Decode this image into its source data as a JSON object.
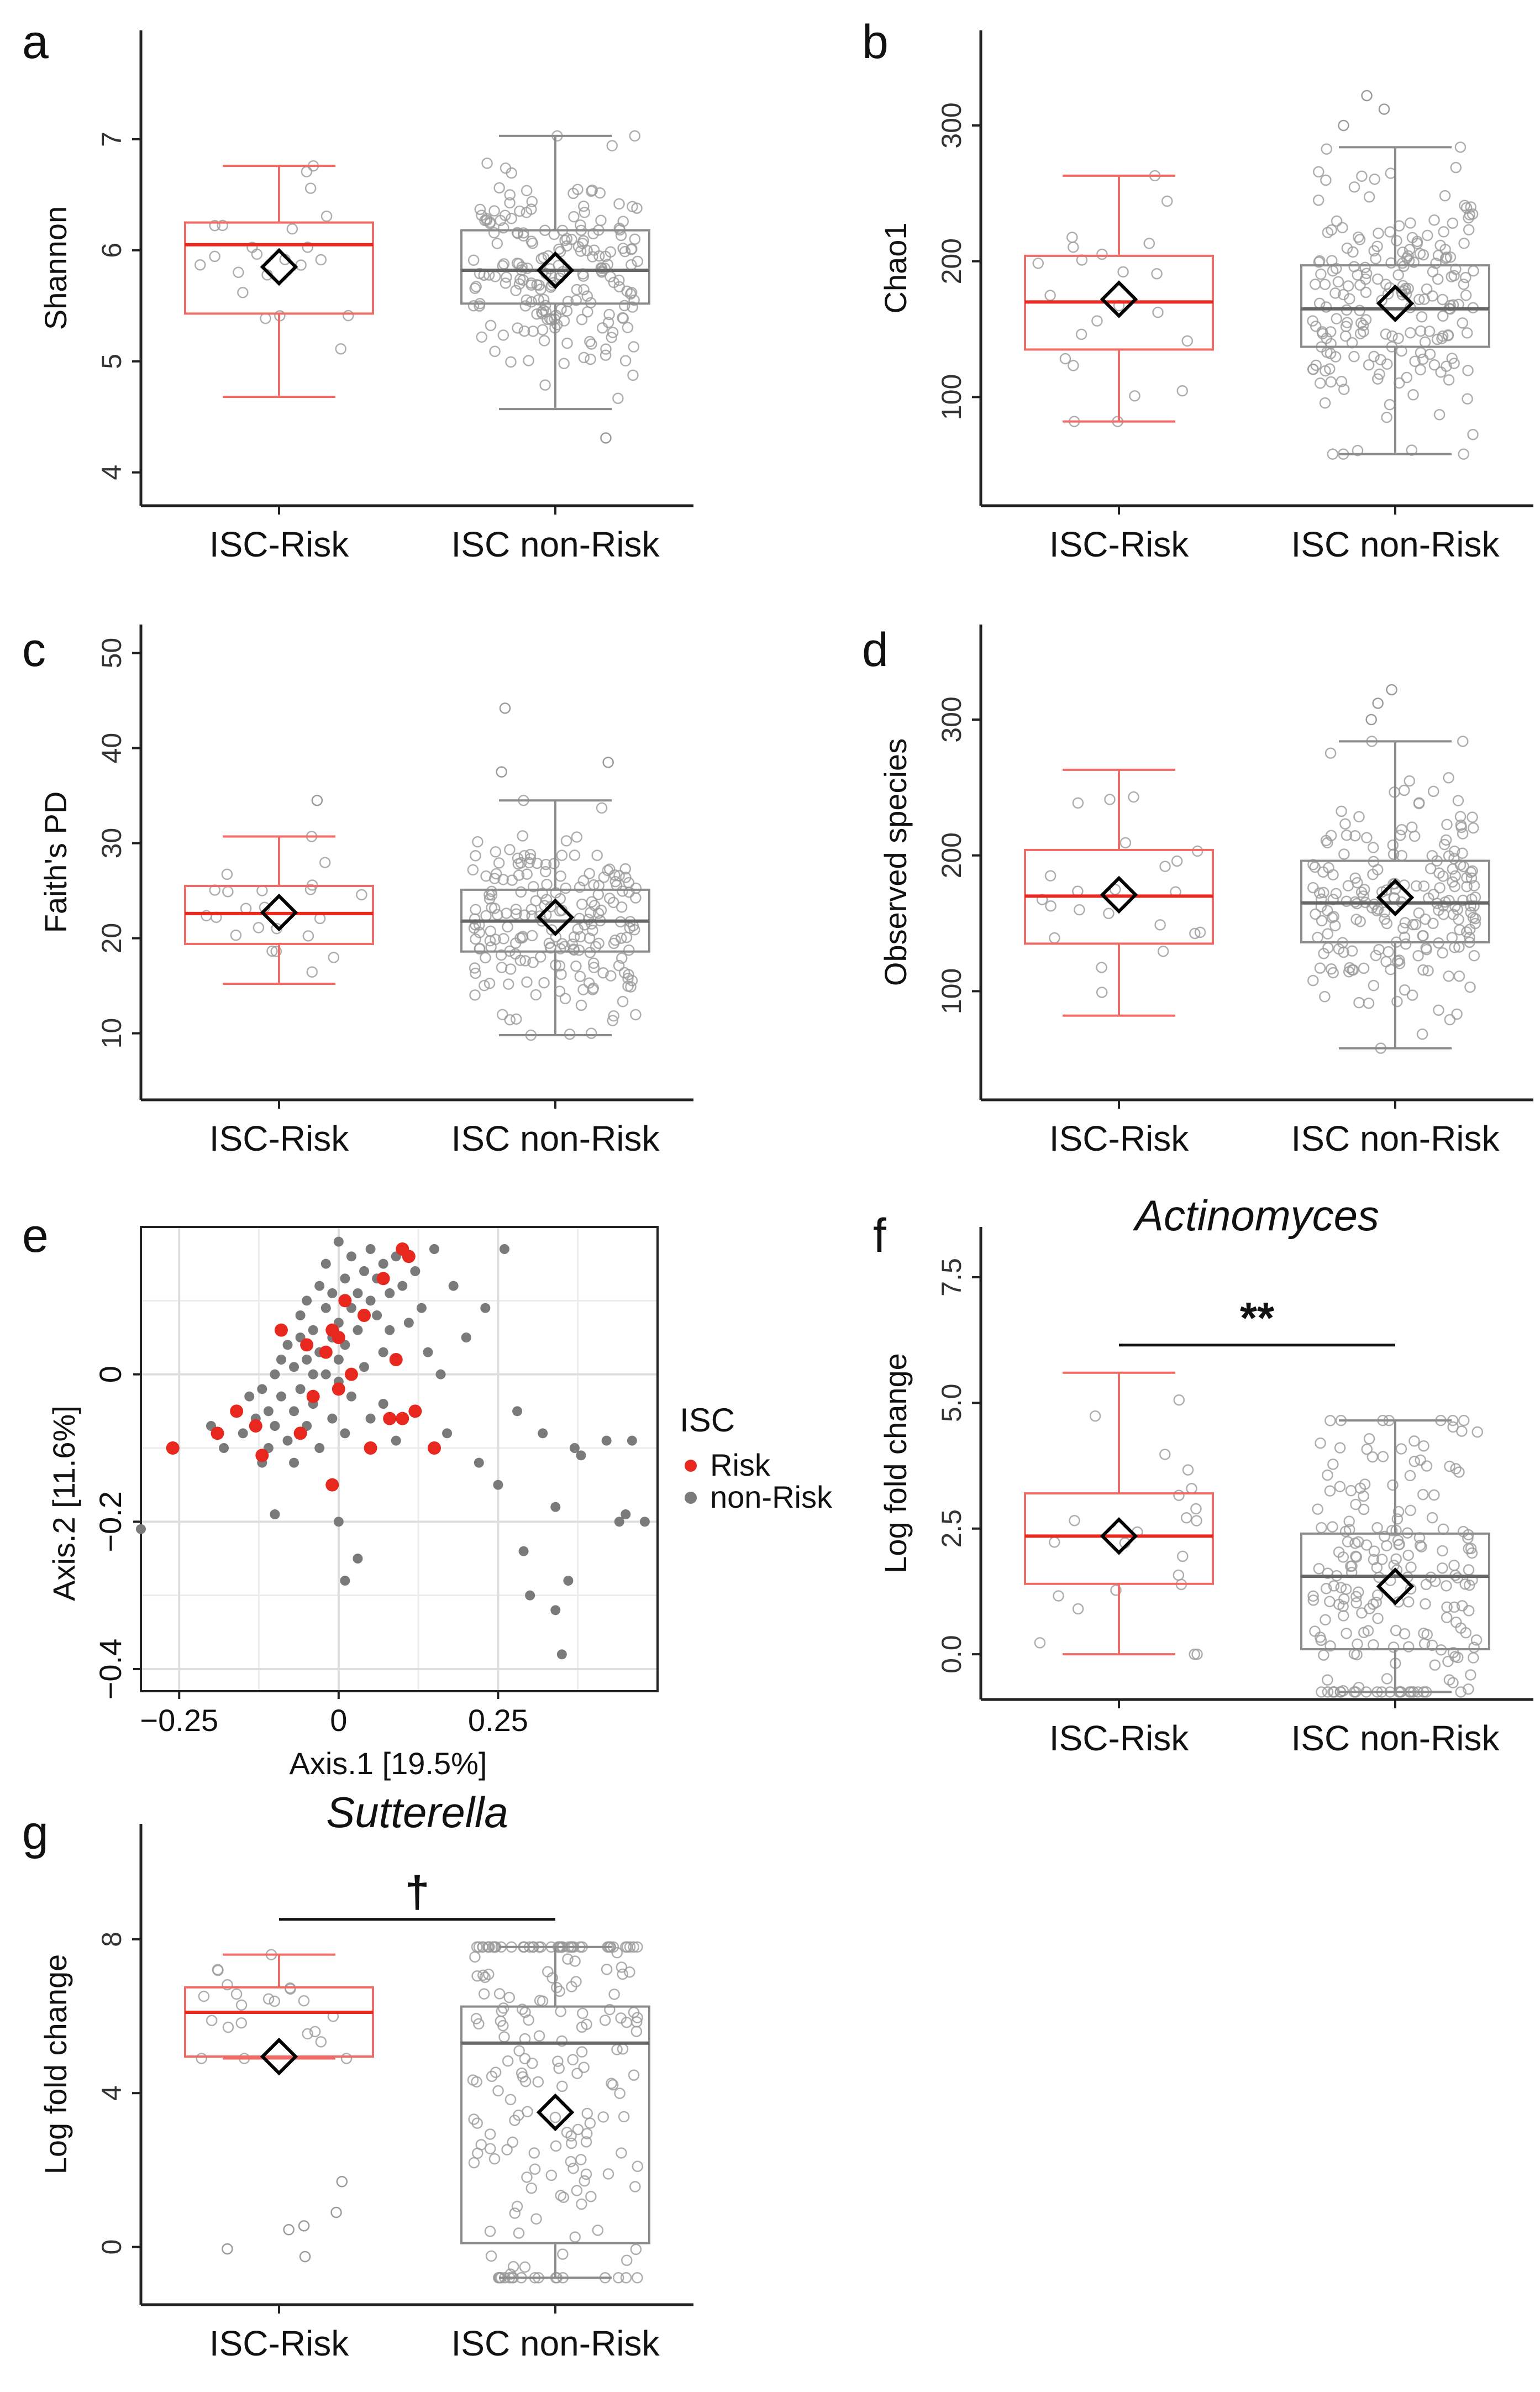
{
  "figure": {
    "colors": {
      "risk": "#e8281e",
      "risk_box": "#f06a66",
      "nonrisk": "#7a7a7a",
      "nonrisk_box": "#8c8c8c",
      "axis": "#222222",
      "grid": "#dedede",
      "diamond": "#000000"
    }
  },
  "chart_data": [
    {
      "id": "a",
      "panel_label": "a",
      "type": "box",
      "title": "",
      "ylabel": "Shannon",
      "xlabel": "",
      "categories": [
        "ISC-Risk",
        "ISC non-Risk"
      ],
      "ylim": [
        3.7,
        7.98
      ],
      "yticks": [
        4,
        5,
        6,
        7
      ],
      "ytick_labels": [
        "4",
        "5",
        "6",
        "7"
      ],
      "boxes": [
        {
          "name": "ISC-Risk",
          "whisker_low": 4.68,
          "q1": 5.43,
          "median": 6.05,
          "q3": 6.25,
          "whisker_high": 6.76,
          "mean": 5.85,
          "n": 22,
          "outliers": []
        },
        {
          "name": "ISC non-Risk",
          "whisker_low": 4.57,
          "q1": 5.52,
          "median": 5.82,
          "q3": 6.18,
          "whisker_high": 7.03,
          "mean": 5.82,
          "n": 200,
          "outliers": [
            4.31
          ]
        }
      ],
      "annotation": null
    },
    {
      "id": "b",
      "panel_label": "b",
      "type": "box",
      "title": "",
      "ylabel": "Chao1",
      "xlabel": "",
      "categories": [
        "ISC-Risk",
        "ISC non-Risk"
      ],
      "ylim": [
        20,
        370
      ],
      "yticks": [
        100,
        200,
        300
      ],
      "ytick_labels": [
        "100",
        "200",
        "300"
      ],
      "boxes": [
        {
          "name": "ISC-Risk",
          "whisker_low": 82,
          "q1": 135,
          "median": 170,
          "q3": 204,
          "whisker_high": 263,
          "mean": 172,
          "n": 22,
          "outliers": []
        },
        {
          "name": "ISC non-Risk",
          "whisker_low": 58,
          "q1": 137,
          "median": 165,
          "q3": 197,
          "whisker_high": 284,
          "mean": 169,
          "n": 200,
          "outliers": [
            300,
            312,
            322
          ]
        }
      ],
      "annotation": null
    },
    {
      "id": "c",
      "panel_label": "c",
      "type": "box",
      "title": "",
      "ylabel": "Faith's PD",
      "xlabel": "",
      "categories": [
        "ISC-Risk",
        "ISC non-Risk"
      ],
      "ylim": [
        3,
        53
      ],
      "yticks": [
        10,
        20,
        30,
        40,
        50
      ],
      "ytick_labels": [
        "10",
        "20",
        "30",
        "40",
        "50"
      ],
      "boxes": [
        {
          "name": "ISC-Risk",
          "whisker_low": 15.2,
          "q1": 19.4,
          "median": 22.6,
          "q3": 25.5,
          "whisker_high": 30.7,
          "mean": 22.7,
          "n": 22,
          "outliers": [
            34.5
          ]
        },
        {
          "name": "ISC non-Risk",
          "whisker_low": 9.8,
          "q1": 18.6,
          "median": 21.8,
          "q3": 25.1,
          "whisker_high": 34.5,
          "mean": 22.2,
          "n": 200,
          "outliers": [
            37.5,
            38.5,
            44.2
          ]
        }
      ],
      "annotation": null
    },
    {
      "id": "d",
      "panel_label": "d",
      "type": "box",
      "title": "",
      "ylabel": "Observed species",
      "xlabel": "",
      "categories": [
        "ISC-Risk",
        "ISC non-Risk"
      ],
      "ylim": [
        20,
        370
      ],
      "yticks": [
        100,
        200,
        300
      ],
      "ytick_labels": [
        "100",
        "200",
        "300"
      ],
      "boxes": [
        {
          "name": "ISC-Risk",
          "whisker_low": 82,
          "q1": 135,
          "median": 170,
          "q3": 204,
          "whisker_high": 263,
          "mean": 171,
          "n": 22,
          "outliers": []
        },
        {
          "name": "ISC non-Risk",
          "whisker_low": 58,
          "q1": 136,
          "median": 165,
          "q3": 196,
          "whisker_high": 284,
          "mean": 169,
          "n": 200,
          "outliers": [
            300,
            312,
            322
          ]
        }
      ],
      "annotation": null
    },
    {
      "id": "e",
      "panel_label": "e",
      "type": "scatter",
      "title": "",
      "xlabel": "Axis.1   [19.5%]",
      "ylabel": "Axis.2   [11.6%]",
      "xlim": [
        -0.31,
        0.5
      ],
      "ylim": [
        -0.43,
        0.2
      ],
      "xticks": [
        -0.25,
        0,
        0.25
      ],
      "xtick_labels": [
        "−0.25",
        "0",
        "0.25"
      ],
      "yticks": [
        -0.4,
        -0.2,
        0
      ],
      "ytick_labels": [
        "−0.4",
        "−0.2",
        "0"
      ],
      "legend": {
        "title": "ISC",
        "position": "right",
        "entries": [
          "Risk",
          "non-Risk"
        ]
      },
      "series": [
        {
          "name": "non-Risk",
          "points": [
            [
              -0.31,
              -0.21
            ],
            [
              -0.2,
              -0.07
            ],
            [
              -0.18,
              -0.1
            ],
            [
              -0.16,
              -0.05
            ],
            [
              -0.15,
              -0.08
            ],
            [
              -0.14,
              -0.03
            ],
            [
              -0.13,
              -0.06
            ],
            [
              -0.12,
              -0.12
            ],
            [
              -0.12,
              -0.02
            ],
            [
              -0.11,
              -0.05
            ],
            [
              -0.11,
              -0.1
            ],
            [
              -0.1,
              0.0
            ],
            [
              -0.1,
              -0.07
            ],
            [
              -0.1,
              -0.19
            ],
            [
              -0.09,
              -0.03
            ],
            [
              -0.09,
              0.02
            ],
            [
              -0.08,
              -0.09
            ],
            [
              -0.08,
              0.04
            ],
            [
              -0.07,
              -0.05
            ],
            [
              -0.07,
              0.01
            ],
            [
              -0.07,
              -0.12
            ],
            [
              -0.06,
              0.05
            ],
            [
              -0.06,
              -0.02
            ],
            [
              -0.06,
              0.08
            ],
            [
              -0.05,
              0.02
            ],
            [
              -0.05,
              -0.07
            ],
            [
              -0.05,
              0.1
            ],
            [
              -0.04,
              0.0
            ],
            [
              -0.04,
              0.06
            ],
            [
              -0.04,
              -0.04
            ],
            [
              -0.03,
              0.12
            ],
            [
              -0.03,
              0.03
            ],
            [
              -0.03,
              -0.1
            ],
            [
              -0.02,
              0.09
            ],
            [
              -0.02,
              0.0
            ],
            [
              -0.02,
              0.15
            ],
            [
              -0.01,
              0.05
            ],
            [
              -0.01,
              -0.06
            ],
            [
              -0.01,
              0.11
            ],
            [
              0.0,
              0.07
            ],
            [
              0.0,
              0.02
            ],
            [
              0.0,
              -0.01
            ],
            [
              0.0,
              0.18
            ],
            [
              0.0,
              -0.2
            ],
            [
              0.01,
              0.13
            ],
            [
              0.01,
              0.04
            ],
            [
              0.01,
              -0.08
            ],
            [
              0.01,
              -0.28
            ],
            [
              0.02,
              0.09
            ],
            [
              0.02,
              0.16
            ],
            [
              0.02,
              -0.03
            ],
            [
              0.03,
              0.11
            ],
            [
              0.03,
              0.06
            ],
            [
              0.03,
              -0.25
            ],
            [
              0.04,
              0.14
            ],
            [
              0.04,
              0.01
            ],
            [
              0.05,
              0.1
            ],
            [
              0.05,
              0.17
            ],
            [
              0.05,
              -0.06
            ],
            [
              0.06,
              0.08
            ],
            [
              0.06,
              0.13
            ],
            [
              0.07,
              0.03
            ],
            [
              0.07,
              0.15
            ],
            [
              0.07,
              -0.04
            ],
            [
              0.08,
              0.11
            ],
            [
              0.08,
              0.06
            ],
            [
              0.09,
              0.16
            ],
            [
              0.09,
              -0.09
            ],
            [
              0.1,
              0.12
            ],
            [
              0.11,
              0.07
            ],
            [
              0.12,
              0.14
            ],
            [
              0.12,
              -0.05
            ],
            [
              0.13,
              0.09
            ],
            [
              0.14,
              0.03
            ],
            [
              0.15,
              0.17
            ],
            [
              0.16,
              0.0
            ],
            [
              0.17,
              -0.08
            ],
            [
              0.18,
              0.12
            ],
            [
              0.2,
              0.05
            ],
            [
              0.22,
              -0.12
            ],
            [
              0.23,
              0.09
            ],
            [
              0.25,
              -0.15
            ],
            [
              0.26,
              0.17
            ],
            [
              0.28,
              -0.05
            ],
            [
              0.29,
              -0.24
            ],
            [
              0.3,
              -0.3
            ],
            [
              0.32,
              -0.08
            ],
            [
              0.34,
              -0.18
            ],
            [
              0.34,
              -0.32
            ],
            [
              0.35,
              -0.38
            ],
            [
              0.36,
              -0.28
            ],
            [
              0.37,
              -0.1
            ],
            [
              0.38,
              -0.11
            ],
            [
              0.42,
              -0.09
            ],
            [
              0.44,
              -0.2
            ],
            [
              0.45,
              -0.19
            ],
            [
              0.46,
              -0.09
            ],
            [
              0.48,
              -0.2
            ]
          ]
        },
        {
          "name": "Risk",
          "points": [
            [
              -0.26,
              -0.1
            ],
            [
              -0.19,
              -0.08
            ],
            [
              -0.16,
              -0.05
            ],
            [
              -0.13,
              -0.07
            ],
            [
              -0.12,
              -0.11
            ],
            [
              -0.09,
              0.06
            ],
            [
              -0.06,
              -0.08
            ],
            [
              -0.05,
              0.04
            ],
            [
              -0.04,
              -0.03
            ],
            [
              -0.02,
              0.03
            ],
            [
              -0.01,
              0.06
            ],
            [
              -0.01,
              -0.15
            ],
            [
              0.0,
              0.05
            ],
            [
              0.0,
              -0.02
            ],
            [
              0.01,
              0.1
            ],
            [
              0.02,
              0.0
            ],
            [
              0.04,
              0.08
            ],
            [
              0.05,
              -0.1
            ],
            [
              0.07,
              0.13
            ],
            [
              0.08,
              -0.06
            ],
            [
              0.09,
              0.02
            ],
            [
              0.1,
              0.17
            ],
            [
              0.11,
              0.16
            ],
            [
              0.12,
              -0.05
            ],
            [
              0.15,
              -0.1
            ],
            [
              0.1,
              -0.06
            ]
          ]
        }
      ],
      "annotation": null
    },
    {
      "id": "f",
      "panel_label": "f",
      "type": "box",
      "title": "Actinomyces",
      "ylabel": "Log fold change",
      "xlabel": "",
      "categories": [
        "ISC-Risk",
        "ISC non-Risk"
      ],
      "ylim": [
        -0.9,
        8.5
      ],
      "yticks": [
        0,
        2.5,
        5,
        7.5
      ],
      "ytick_labels": [
        "0.0",
        "2.5",
        "5.0",
        "7.5"
      ],
      "boxes": [
        {
          "name": "ISC-Risk",
          "whisker_low": 0.0,
          "q1": 1.4,
          "median": 2.35,
          "q3": 3.2,
          "whisker_high": 5.6,
          "mean": 2.35,
          "n": 22,
          "outliers": []
        },
        {
          "name": "ISC non-Risk",
          "whisker_low": -0.75,
          "q1": 0.1,
          "median": 1.55,
          "q3": 2.4,
          "whisker_high": 4.65,
          "mean": 1.35,
          "n": 200,
          "outliers": []
        }
      ],
      "annotation": {
        "text": "**",
        "between": [
          "ISC-Risk",
          "ISC non-Risk"
        ]
      }
    },
    {
      "id": "g",
      "panel_label": "g",
      "type": "box",
      "title": "Sutterella",
      "ylabel": "Log fold change",
      "xlabel": "",
      "categories": [
        "ISC-Risk",
        "ISC non-Risk"
      ],
      "ylim": [
        -1.5,
        11.0
      ],
      "yticks": [
        0,
        4,
        8
      ],
      "ytick_labels": [
        "0",
        "4",
        "8"
      ],
      "boxes": [
        {
          "name": "ISC-Risk",
          "whisker_low": 4.9,
          "q1": 4.95,
          "median": 6.1,
          "q3": 6.75,
          "whisker_high": 7.6,
          "mean": 4.95,
          "n": 22,
          "outliers": [
            1.7,
            0.9,
            0.55,
            0.45,
            -0.05,
            -0.25
          ]
        },
        {
          "name": "ISC non-Risk",
          "whisker_low": -0.8,
          "q1": 0.1,
          "median": 5.3,
          "q3": 6.25,
          "whisker_high": 7.8,
          "mean": 3.5,
          "n": 200,
          "outliers": []
        }
      ],
      "annotation": {
        "text": "†",
        "between": [
          "ISC-Risk",
          "ISC non-Risk"
        ]
      }
    }
  ]
}
